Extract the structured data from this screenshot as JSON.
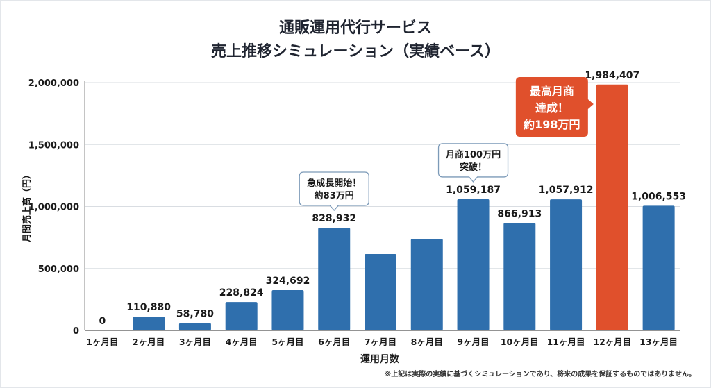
{
  "chart_data": {
    "type": "bar",
    "title": [
      "通販運用代行サービス",
      "売上推移シミュレーション（実績ベース）"
    ],
    "xlabel": "運用月数",
    "ylabel": "月間売上高（円）",
    "ylim": [
      0,
      2000000
    ],
    "yticks": [
      0,
      500000,
      1000000,
      1500000,
      2000000
    ],
    "ytick_labels": [
      "0",
      "500,000",
      "1,000,000",
      "1,500,000",
      "2,000,000"
    ],
    "grid": true,
    "categories": [
      "1ヶ月目",
      "2ヶ月目",
      "3ヶ月目",
      "4ヶ月目",
      "5ヶ月目",
      "6ヶ月目",
      "7ヶ月目",
      "8ヶ月目",
      "9ヶ月目",
      "10ヶ月目",
      "11ヶ月目",
      "12ヶ月目",
      "13ヶ月目"
    ],
    "values": [
      0,
      110880,
      58780,
      228824,
      324692,
      828932,
      616000,
      739000,
      1059187,
      866913,
      1057912,
      1984407,
      1006553
    ],
    "value_labels": [
      "0",
      "110,880",
      "58,780",
      "228,824",
      "324,692",
      "828,932",
      "",
      "",
      "1,059,187",
      "866,913",
      "1,057,912",
      "1,984,407",
      "1,006,553"
    ],
    "highlight_index": 11,
    "colors": {
      "bar": "#2f6fad",
      "highlight": "#e0502c",
      "grid": "#d9dde2",
      "text": "#1a1a1a"
    },
    "annotations": [
      {
        "index": 5,
        "lines": [
          "急成長開始！",
          "約83万円"
        ],
        "style": "callout-white"
      },
      {
        "index": 8,
        "lines": [
          "月商100万円",
          "突破！"
        ],
        "style": "callout-white"
      },
      {
        "index": 11,
        "lines": [
          "最高月商",
          "達成！",
          "約198万円"
        ],
        "style": "callout-orange"
      }
    ]
  },
  "footnote": "※上記は実際の実績に基づくシミュレーションであり、将来の成果を保証するものではありません。"
}
